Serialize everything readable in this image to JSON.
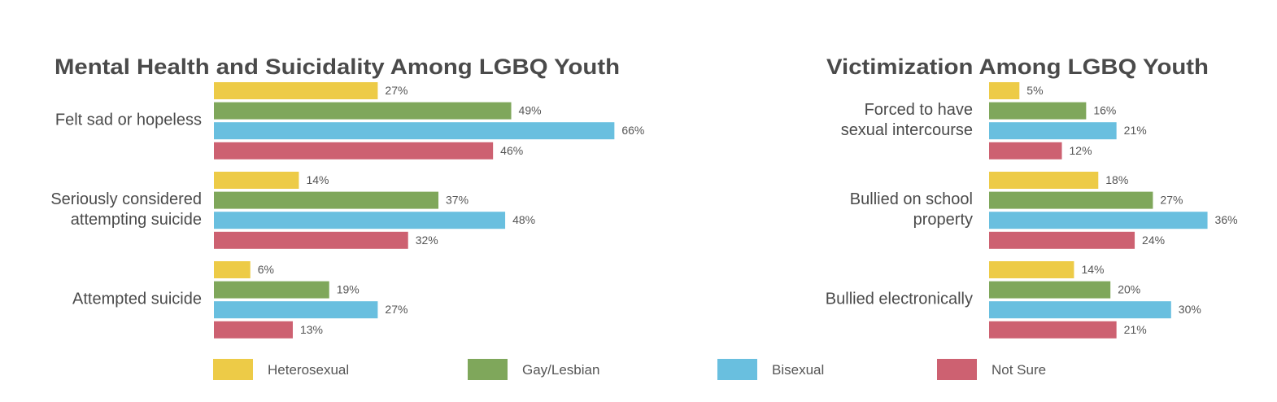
{
  "chart_data": [
    {
      "type": "bar",
      "orientation": "horizontal",
      "title": "Mental Health and Suicidality Among LGBQ Youth",
      "categories": [
        [
          "Felt sad or hopeless"
        ],
        [
          "Seriously considered",
          "attempting suicide"
        ],
        [
          "Attempted suicide"
        ]
      ],
      "series": [
        {
          "name": "Heterosexual",
          "values": [
            27,
            14,
            6
          ]
        },
        {
          "name": "Gay/Lesbian",
          "values": [
            49,
            37,
            19
          ]
        },
        {
          "name": "Bisexual",
          "values": [
            66,
            48,
            27
          ]
        },
        {
          "name": "Not Sure",
          "values": [
            46,
            32,
            13
          ]
        }
      ],
      "value_suffix": "%",
      "xlim": [
        0,
        66
      ]
    },
    {
      "type": "bar",
      "orientation": "horizontal",
      "title": "Victimization Among LGBQ Youth",
      "categories": [
        [
          "Forced to have",
          "sexual intercourse"
        ],
        [
          "Bullied on school",
          "property"
        ],
        [
          "Bullied electronically"
        ]
      ],
      "series": [
        {
          "name": "Heterosexual",
          "values": [
            5,
            18,
            14
          ]
        },
        {
          "name": "Gay/Lesbian",
          "values": [
            16,
            27,
            20
          ]
        },
        {
          "name": "Bisexual",
          "values": [
            21,
            36,
            30
          ]
        },
        {
          "name": "Not Sure",
          "values": [
            12,
            24,
            21
          ]
        }
      ],
      "value_suffix": "%",
      "xlim": [
        0,
        36
      ]
    }
  ],
  "legend": {
    "placement": "bottom",
    "items": [
      {
        "label": "Heterosexual",
        "color": "#EDCB47"
      },
      {
        "label": "Gay/Lesbian",
        "color": "#7FA75B"
      },
      {
        "label": "Bisexual",
        "color": "#69BFDF"
      },
      {
        "label": "Not Sure",
        "color": "#CD6171"
      }
    ]
  }
}
